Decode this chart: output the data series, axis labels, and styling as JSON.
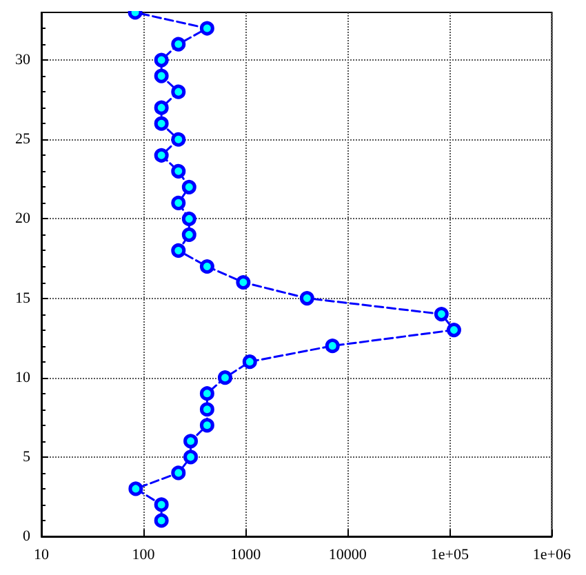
{
  "chart_data": {
    "type": "line",
    "x": [
      150,
      150,
      84,
      220,
      290,
      290,
      420,
      420,
      420,
      630,
      1100,
      7100,
      110000,
      83000,
      4000,
      950,
      420,
      220,
      280,
      280,
      220,
      280,
      220,
      150,
      220,
      150,
      150,
      220,
      150,
      150,
      220,
      420,
      83
    ],
    "values": [
      1,
      2,
      3,
      4,
      5,
      6,
      7,
      8,
      9,
      10,
      11,
      12,
      13,
      14,
      15,
      16,
      17,
      18,
      19,
      20,
      21,
      22,
      23,
      24,
      25,
      26,
      27,
      28,
      29,
      30,
      31,
      32,
      33
    ],
    "color": "#0000ff",
    "xlim": [
      10,
      1000000
    ],
    "xticks": [
      10,
      100,
      1000,
      10000,
      {
        "value": 100000,
        "label": "1e+05"
      },
      {
        "value": 1000000,
        "label": "1e+06"
      }
    ],
    "ylim": [
      0,
      33
    ],
    "yticks": [
      0,
      5,
      10,
      15,
      20,
      25,
      30
    ],
    "log": "x",
    "grid": true,
    "marker": "circle",
    "line_style": "dashed"
  }
}
